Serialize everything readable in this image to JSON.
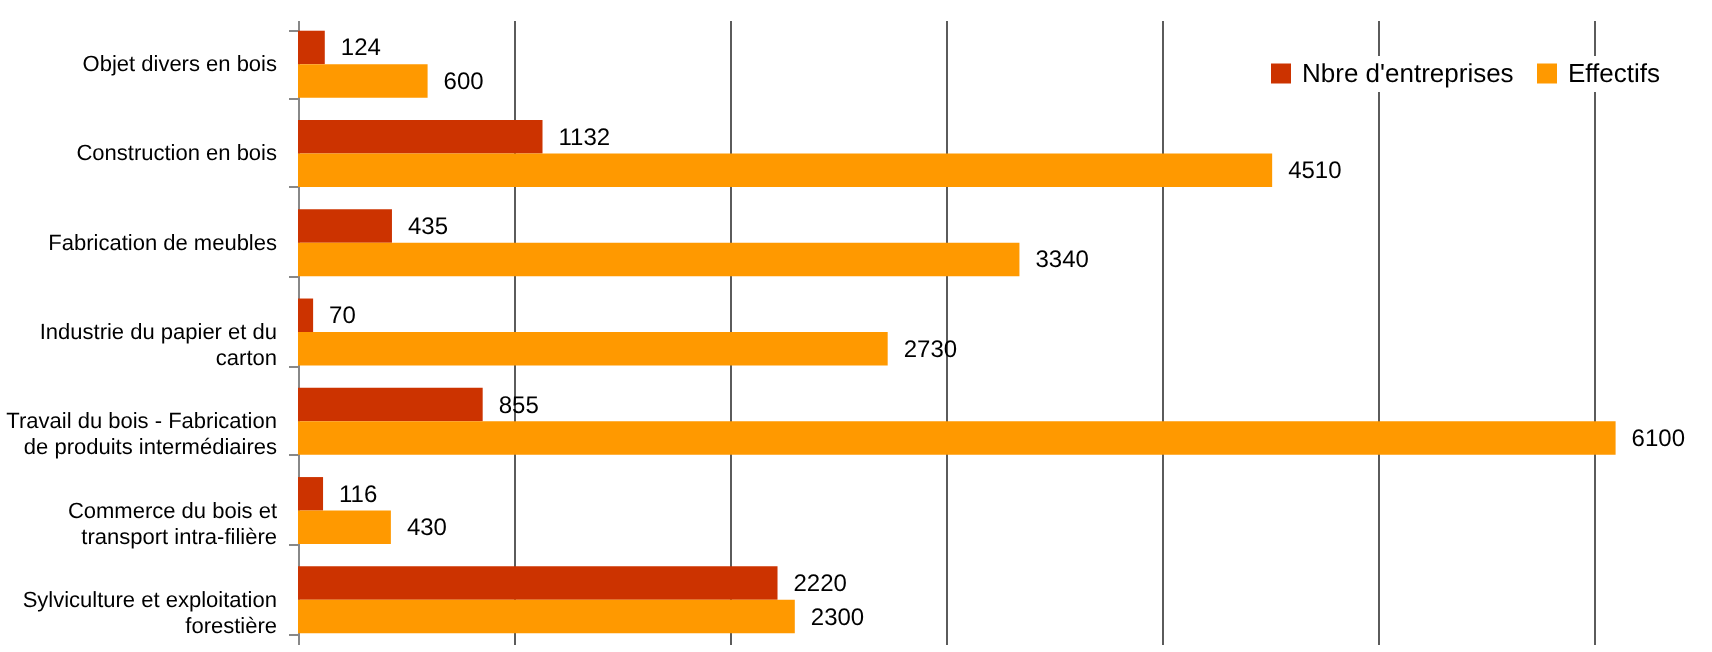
{
  "chart_data": {
    "type": "bar",
    "orientation": "horizontal",
    "categories": [
      "Objet divers en bois",
      "Construction en bois",
      "Fabrication de meubles",
      "Industrie du papier et du\ncarton",
      "Travail du bois - Fabrication\nde produits intermédiaires",
      "Commerce du bois et\ntransport intra-filière",
      "Sylviculture et exploitation\nforestière"
    ],
    "series": [
      {
        "name": "Nbre d'entreprises",
        "color": "#cc3300",
        "values": [
          124,
          1132,
          435,
          70,
          855,
          116,
          2220
        ]
      },
      {
        "name": "Effectifs",
        "color": "#ff9900",
        "values": [
          600,
          4510,
          3340,
          2730,
          6100,
          430,
          2300
        ]
      }
    ],
    "xticks": [
      {
        "value": 0,
        "label": null
      },
      {
        "value": 1000,
        "label": null
      },
      {
        "value": 2000,
        "label": null
      },
      {
        "value": 3000,
        "label": null
      },
      {
        "value": 4000,
        "label": null
      },
      {
        "value": 5000,
        "label": null
      },
      {
        "value": 6000,
        "label": null
      }
    ],
    "tick_labels": "y",
    "grid": "x",
    "legend": "top right",
    "data_labels": true
  }
}
